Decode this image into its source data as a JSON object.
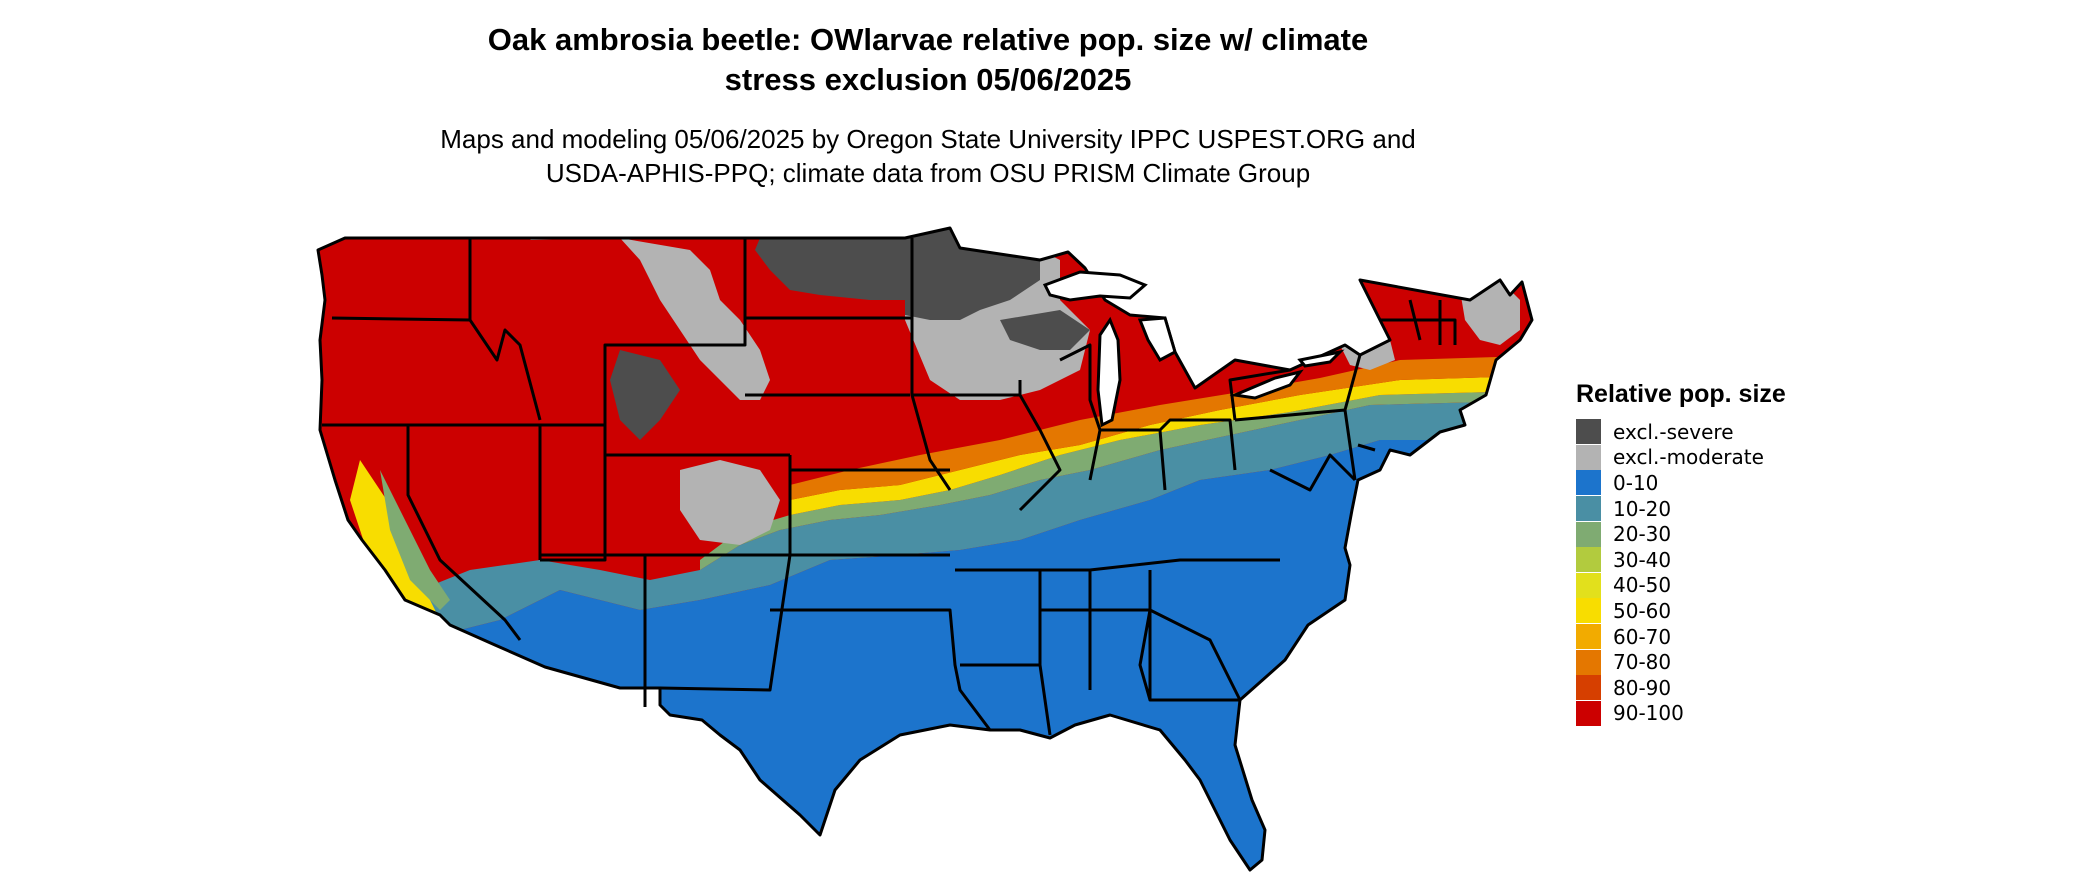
{
  "title_line1": "Oak ambrosia beetle: OWlarvae relative pop. size w/ climate",
  "title_line2": "stress exclusion 05/06/2025",
  "subtitle_line1": "Maps and modeling 05/06/2025 by Oregon State University IPPC USPEST.ORG and",
  "subtitle_line2": "USDA-APHIS-PPQ; climate data from OSU PRISM Climate Group",
  "legend": {
    "title": "Relative pop. size",
    "items": [
      {
        "label": "excl.-severe",
        "color": "#4d4d4d"
      },
      {
        "label": "excl.-moderate",
        "color": "#b3b3b3"
      },
      {
        "label": "0-10",
        "color": "#1c74cc"
      },
      {
        "label": "10-20",
        "color": "#4a8fa4"
      },
      {
        "label": "20-30",
        "color": "#7fab72"
      },
      {
        "label": "30-40",
        "color": "#b2cb3e"
      },
      {
        "label": "40-50",
        "color": "#e2e01c"
      },
      {
        "label": "50-60",
        "color": "#f8dd00"
      },
      {
        "label": "60-70",
        "color": "#f2ab00"
      },
      {
        "label": "70-80",
        "color": "#e47700"
      },
      {
        "label": "80-90",
        "color": "#d63f00"
      },
      {
        "label": "90-100",
        "color": "#cc0000"
      }
    ]
  }
}
